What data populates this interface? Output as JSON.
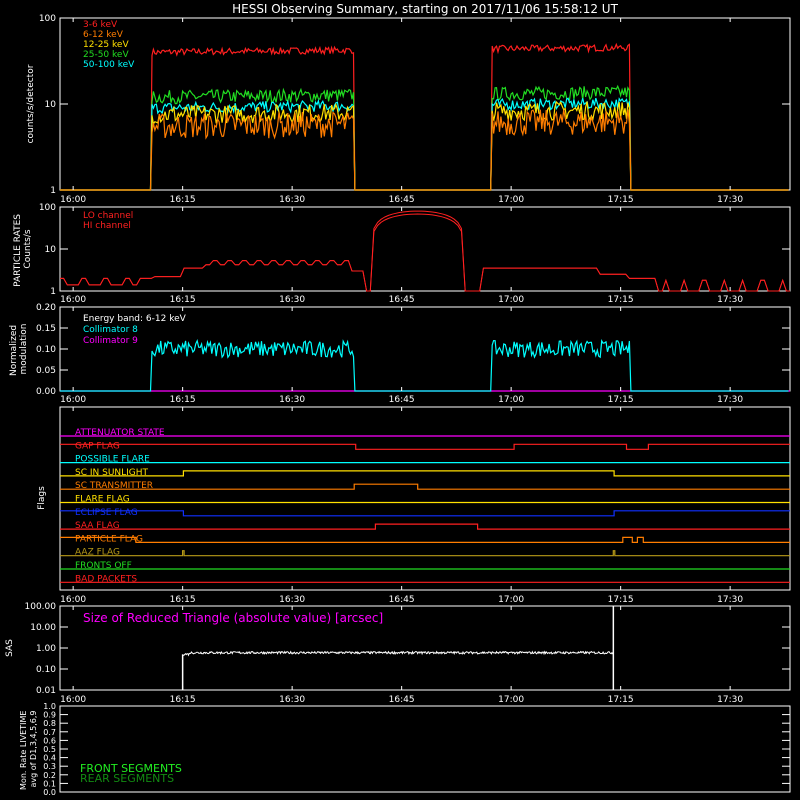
{
  "title": "HESSI Observing Summary, starting on 2017/11/06 15:58:12 UT",
  "time_ticks": [
    "16:00",
    "16:15",
    "16:30",
    "16:45",
    "17:00",
    "17:15",
    "17:30"
  ],
  "time_tick_minutes": [
    1.8,
    16.8,
    31.8,
    46.8,
    61.8,
    76.8,
    91.8
  ],
  "time_range_minutes": [
    0,
    100
  ],
  "chart_data": [
    {
      "type": "line",
      "name": "count-rates",
      "ylabel": "counts/s/detector",
      "yscale": "log",
      "ylim": [
        1,
        100
      ],
      "yticks": [
        "1",
        "10",
        "100"
      ],
      "ytick_values": [
        1,
        10,
        100
      ],
      "active_intervals_minutes": [
        [
          12.4,
          40.3
        ],
        [
          59.1,
          78.1
        ]
      ],
      "series": [
        {
          "name": "3-6 keV",
          "color": "#ff2020",
          "level": 40,
          "noise": 0.09
        },
        {
          "name": "6-12 keV",
          "color": "#ff7d00",
          "level": 5.5,
          "noise": 0.35
        },
        {
          "name": "12-25 keV",
          "color": "#ffe000",
          "level": 7.5,
          "noise": 0.25
        },
        {
          "name": "25-50 keV",
          "color": "#22dd22",
          "level": 12,
          "noise": 0.18
        },
        {
          "name": "50-100 keV",
          "color": "#00ffff",
          "level": 9,
          "noise": 0.15
        }
      ]
    },
    {
      "type": "line",
      "name": "particle-rates",
      "ylabel": "PARTICLE RATES Counts/s",
      "yscale": "log",
      "ylim": [
        1,
        100
      ],
      "yticks": [
        "1",
        "10",
        "100"
      ],
      "ytick_values": [
        1,
        10,
        100
      ],
      "series": [
        {
          "name": "LO channel",
          "color": "#ff2020"
        },
        {
          "name": "HI channel",
          "color": "#ff2020"
        }
      ]
    },
    {
      "type": "line",
      "name": "modulation",
      "ylabel": "Normalized modulation",
      "ylim": [
        0,
        0.2
      ],
      "yticks": [
        "0.00",
        "0.05",
        "0.10",
        "0.15",
        "0.20"
      ],
      "ytick_values": [
        0,
        0.05,
        0.1,
        0.15,
        0.2
      ],
      "annotation": "Energy band: 6-12 keV",
      "active_intervals_minutes": [
        [
          12.4,
          40.3
        ],
        [
          59.1,
          78.1
        ]
      ],
      "series": [
        {
          "name": "Collimator 8",
          "color": "#00ffff",
          "level": 0.1
        },
        {
          "name": "Collimator 9",
          "color": "#ff00ff",
          "level": 0.0
        }
      ]
    },
    {
      "type": "line",
      "name": "flags",
      "ylabel": "Flags",
      "flags": [
        {
          "name": "ATTENUATOR STATE",
          "color": "#ff00ff",
          "high_intervals_minutes": []
        },
        {
          "name": "GAP FLAG",
          "color": "#ff2020",
          "high_intervals_minutes": [
            [
              0,
              40.5
            ],
            [
              62.2,
              77.5
            ],
            [
              80.5,
              100
            ]
          ]
        },
        {
          "name": "POSSIBLE FLARE",
          "color": "#00ffff",
          "high_intervals_minutes": []
        },
        {
          "name": "SC IN SUNLIGHT",
          "color": "#ffe000",
          "high_intervals_minutes": [
            [
              16.8,
              75.8
            ]
          ]
        },
        {
          "name": "SC TRANSMITTER",
          "color": "#ff7d00",
          "high_intervals_minutes": [
            [
              40.3,
              49.0
            ]
          ]
        },
        {
          "name": "FLARE FLAG",
          "color": "#ffe000",
          "high_intervals_minutes": []
        },
        {
          "name": "ECLIPSE FLAG",
          "color": "#1030ff",
          "high_intervals_minutes": [
            [
              0,
              16.8
            ],
            [
              75.8,
              100
            ]
          ]
        },
        {
          "name": "SAA FLAG",
          "color": "#ff2020",
          "high_intervals_minutes": [
            [
              43.2,
              57.2
            ]
          ]
        },
        {
          "name": "PARTICLE FLAG",
          "color": "#ff7d00",
          "high_intervals_minutes": [
            [
              0,
              10.3
            ],
            [
              77.0,
              78.3
            ],
            [
              79.0,
              79.8
            ]
          ]
        },
        {
          "name": "AAZ FLAG",
          "color": "#b89a18",
          "high_intervals_minutes": [
            [
              16.7,
              16.9
            ],
            [
              75.7,
              75.9
            ]
          ]
        },
        {
          "name": "FRONTS OFF",
          "color": "#22dd22",
          "high_intervals_minutes": []
        },
        {
          "name": "BAD PACKETS",
          "color": "#ff2020",
          "high_intervals_minutes": []
        }
      ]
    },
    {
      "type": "line",
      "name": "sas",
      "ylabel": "SAS",
      "yscale": "log",
      "ylim": [
        0.01,
        100
      ],
      "yticks": [
        "0.01",
        "0.10",
        "1.00",
        "10.00",
        "100.00"
      ],
      "ytick_values": [
        0.01,
        0.1,
        1,
        10,
        100
      ],
      "annotation": "Size of Reduced Triangle (absolute value) [arcsec]",
      "series": [
        {
          "name": "reduced triangle",
          "color": "#ffffff",
          "level": 0.6,
          "interval_minutes": [
            16.8,
            75.8
          ]
        }
      ]
    },
    {
      "type": "line",
      "name": "livetime",
      "ylabel": "Mon. Rate LIVETIME avg of D1,3,4,5,6,9",
      "ylim": [
        0,
        1.0
      ],
      "yticks": [
        "0.0",
        "0.1",
        "0.2",
        "0.3",
        "0.4",
        "0.5",
        "0.6",
        "0.7",
        "0.8",
        "0.9",
        "1.0"
      ],
      "ytick_values": [
        0,
        0.1,
        0.2,
        0.3,
        0.4,
        0.5,
        0.6,
        0.7,
        0.8,
        0.9,
        1.0
      ],
      "series": [
        {
          "name": "FRONT SEGMENTS",
          "color": "#22ee22"
        },
        {
          "name": "REAR SEGMENTS",
          "color": "#128a12"
        }
      ]
    }
  ]
}
